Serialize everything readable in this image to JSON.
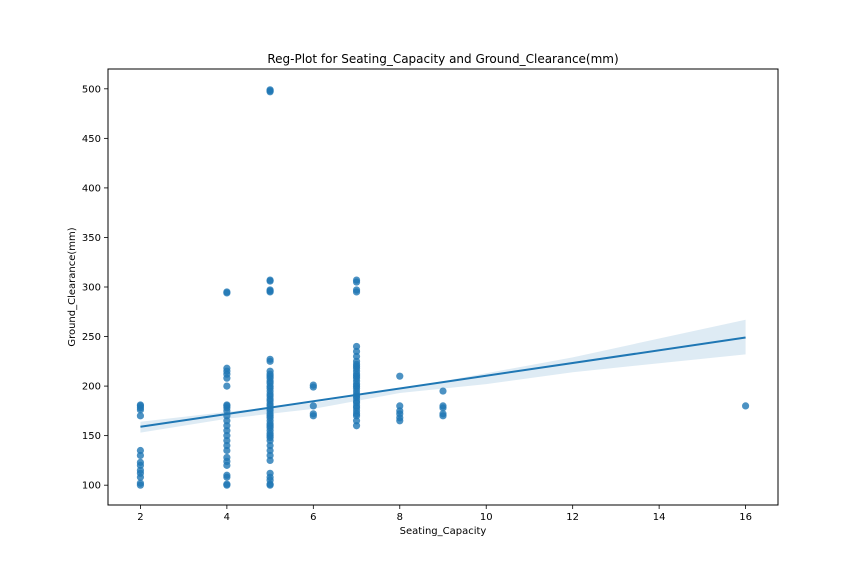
{
  "chart_data": {
    "type": "scatter",
    "title": "Reg-Plot for Seating_Capacity and Ground_Clearance(mm)",
    "xlabel": "Seating_Capacity",
    "ylabel": "Ground_Clearance(mm)",
    "xlim": [
      1.25,
      16.75
    ],
    "ylim": [
      80,
      520
    ],
    "x_ticks": [
      2,
      4,
      6,
      8,
      10,
      12,
      14,
      16
    ],
    "y_ticks": [
      100,
      150,
      200,
      250,
      300,
      350,
      400,
      450,
      500
    ],
    "grid": false,
    "colors": {
      "points": "#1f77b4",
      "line": "#1f77b4",
      "ci_band": "#1f77b4"
    },
    "series": [
      {
        "type": "scatter",
        "x": [
          2,
          2,
          2,
          2,
          2,
          2,
          2,
          2,
          2,
          2,
          2,
          2,
          2,
          2,
          4,
          4,
          4,
          4,
          4,
          4,
          4,
          4,
          4,
          4,
          4,
          4,
          4,
          4,
          4,
          4,
          4,
          4,
          4,
          4,
          4,
          4,
          4,
          4,
          4,
          4,
          5,
          5,
          5,
          5,
          5,
          5,
          5,
          5,
          5,
          5,
          5,
          5,
          5,
          5,
          5,
          5,
          5,
          5,
          5,
          5,
          5,
          5,
          5,
          5,
          5,
          5,
          5,
          5,
          5,
          5,
          5,
          5,
          5,
          5,
          5,
          5,
          5,
          5,
          5,
          5,
          5,
          5,
          5,
          5,
          5,
          5,
          5,
          5,
          6,
          6,
          6,
          6,
          6,
          7,
          7,
          7,
          7,
          7,
          7,
          7,
          7,
          7,
          7,
          7,
          7,
          7,
          7,
          7,
          7,
          7,
          7,
          7,
          7,
          7,
          7,
          7,
          7,
          7,
          7,
          7,
          7,
          7,
          7,
          7,
          7,
          8,
          8,
          8,
          8,
          8,
          8,
          9,
          9,
          9,
          9,
          9,
          16
        ],
        "y": [
          100,
          102,
          108,
          112,
          115,
          120,
          123,
          130,
          135,
          170,
          176,
          178,
          180,
          181,
          100,
          101,
          108,
          110,
          120,
          124,
          128,
          135,
          140,
          145,
          150,
          155,
          160,
          165,
          170,
          175,
          178,
          180,
          181,
          200,
          208,
          212,
          215,
          218,
          294,
          295,
          100,
          101,
          105,
          108,
          112,
          125,
          130,
          135,
          140,
          145,
          148,
          150,
          152,
          155,
          158,
          160,
          162,
          165,
          168,
          170,
          172,
          175,
          177,
          180,
          182,
          185,
          187,
          190,
          192,
          195,
          198,
          200,
          203,
          205,
          208,
          210,
          212,
          215,
          225,
          227,
          295,
          296,
          297,
          306,
          307,
          497,
          498,
          499,
          170,
          172,
          180,
          199,
          201,
          160,
          165,
          170,
          172,
          175,
          178,
          180,
          183,
          185,
          188,
          190,
          192,
          195,
          198,
          200,
          202,
          205,
          208,
          210,
          212,
          215,
          218,
          220,
          222,
          225,
          230,
          235,
          240,
          295,
          297,
          305,
          307,
          165,
          168,
          172,
          175,
          180,
          210,
          170,
          172,
          178,
          180,
          195,
          180
        ]
      },
      {
        "type": "regression_line",
        "x": [
          2,
          16
        ],
        "y": [
          159,
          249
        ]
      },
      {
        "type": "confidence_band",
        "x": [
          2,
          4,
          6,
          8,
          10,
          12,
          14,
          16
        ],
        "upper": [
          164,
          174,
          183,
          197,
          213,
          229,
          248,
          267
        ],
        "lower": [
          153,
          167,
          177,
          193,
          202,
          214,
          223,
          232
        ]
      }
    ]
  }
}
